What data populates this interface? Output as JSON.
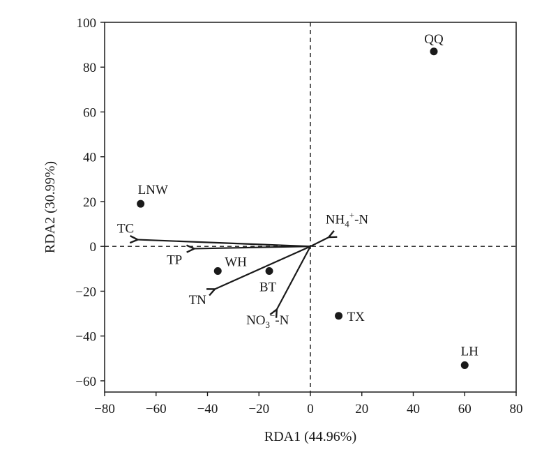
{
  "chart_data": {
    "type": "scatter",
    "title": "",
    "xlabel": "RDA1 (44.96%)",
    "ylabel": "RDA2 (30.99%)",
    "xlim": [
      -80,
      80
    ],
    "ylim": [
      -65,
      100
    ],
    "xticks": [
      -80,
      -60,
      -40,
      -20,
      0,
      20,
      40,
      60,
      80
    ],
    "yticks": [
      -60,
      -40,
      -20,
      0,
      20,
      40,
      60,
      80,
      100
    ],
    "grid": false,
    "reference_lines": {
      "x": 0,
      "y": 0,
      "style": "dashed"
    },
    "points": [
      {
        "label": "QQ",
        "x": 48,
        "y": 87
      },
      {
        "label": "LNW",
        "x": -66,
        "y": 19
      },
      {
        "label": "WH",
        "x": -36,
        "y": -11
      },
      {
        "label": "BT",
        "x": -16,
        "y": -11
      },
      {
        "label": "TX",
        "x": 11,
        "y": -31
      },
      {
        "label": "LH",
        "x": 60,
        "y": -53
      }
    ],
    "vectors": [
      {
        "label": "TC",
        "x": -67,
        "y": 3
      },
      {
        "label": "TP",
        "x": -45,
        "y": -1
      },
      {
        "label": "TN",
        "x": -37,
        "y": -19
      },
      {
        "label": "NO3−-N",
        "base": "NO",
        "sub": "3",
        "sup": "−",
        "rest": "-N",
        "x": -13,
        "y": -28
      },
      {
        "label": "NH4+-N",
        "base": "NH",
        "sub": "4",
        "sup": "+",
        "rest": "-N",
        "x": 7,
        "y": 4
      }
    ]
  }
}
